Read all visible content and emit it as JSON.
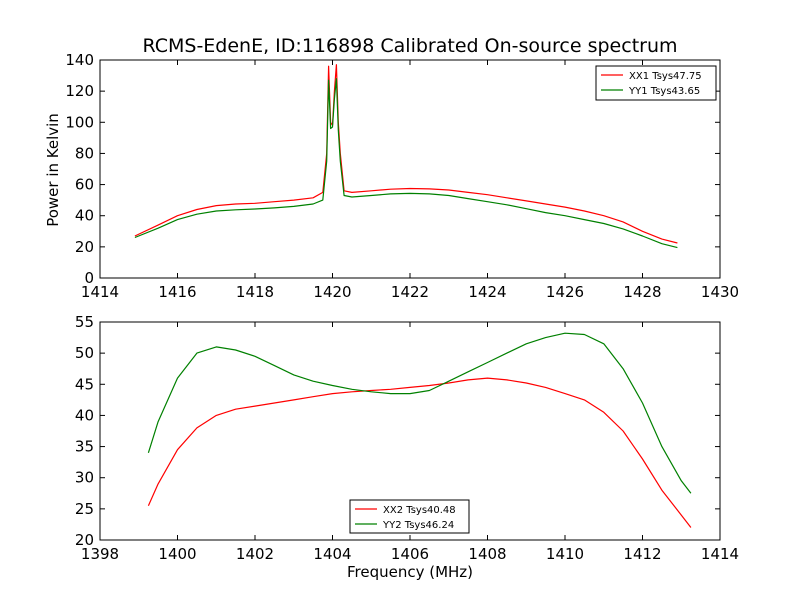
{
  "chart_data": [
    {
      "type": "line",
      "title": "RCMS-EdenE, ID:116898 Calibrated On-source spectrum",
      "xlabel": "",
      "ylabel": "Power in Kelvin",
      "xlim": [
        1414,
        1430
      ],
      "ylim": [
        0,
        140
      ],
      "xticks": [
        1414,
        1416,
        1418,
        1420,
        1422,
        1424,
        1426,
        1428,
        1430
      ],
      "yticks": [
        0,
        20,
        40,
        60,
        80,
        100,
        120,
        140
      ],
      "grid": false,
      "legend": "top-right",
      "series": [
        {
          "name": "XX1 Tsys47.75",
          "color": "#ff0000",
          "x": [
            1414.9,
            1415.5,
            1416,
            1416.5,
            1417,
            1417.5,
            1418,
            1418.5,
            1419,
            1419.5,
            1419.75,
            1419.85,
            1419.9,
            1419.95,
            1420.0,
            1420.05,
            1420.1,
            1420.15,
            1420.2,
            1420.3,
            1420.5,
            1421,
            1421.5,
            1422,
            1422.5,
            1423,
            1423.5,
            1424,
            1424.5,
            1425,
            1425.5,
            1426,
            1426.5,
            1427,
            1427.5,
            1428,
            1428.5,
            1428.9
          ],
          "y": [
            27,
            34,
            40,
            44,
            46.5,
            47.5,
            48,
            49,
            50,
            51.5,
            55,
            80,
            136,
            100,
            98,
            120,
            137,
            100,
            80,
            56,
            55,
            56,
            57,
            57.5,
            57.2,
            56.5,
            55,
            53.5,
            51.5,
            49.5,
            47.5,
            45.5,
            43,
            40,
            36,
            30,
            25,
            22.5
          ]
        },
        {
          "name": "YY1 Tsys43.65",
          "color": "#008000",
          "x": [
            1414.9,
            1415.5,
            1416,
            1416.5,
            1417,
            1417.5,
            1418,
            1418.5,
            1419,
            1419.5,
            1419.75,
            1419.85,
            1419.9,
            1419.95,
            1420.0,
            1420.05,
            1420.1,
            1420.15,
            1420.2,
            1420.3,
            1420.5,
            1421,
            1421.5,
            1422,
            1422.5,
            1423,
            1423.5,
            1424,
            1424.5,
            1425,
            1425.5,
            1426,
            1426.5,
            1427,
            1427.5,
            1428,
            1428.5,
            1428.9
          ],
          "y": [
            26,
            32,
            37.5,
            41,
            43,
            43.8,
            44.3,
            45,
            46,
            47.5,
            50,
            75,
            127,
            96,
            97,
            115,
            128,
            95,
            75,
            53,
            52,
            53,
            54,
            54.3,
            54,
            53,
            51,
            49,
            47,
            44.5,
            42,
            40,
            37.5,
            35,
            31.5,
            27,
            22,
            19.5
          ]
        }
      ]
    },
    {
      "type": "line",
      "title": "",
      "xlabel": "Frequency (MHz)",
      "ylabel": "",
      "xlim": [
        1398,
        1414
      ],
      "ylim": [
        20,
        55
      ],
      "xticks": [
        1398,
        1400,
        1402,
        1404,
        1406,
        1408,
        1410,
        1412,
        1414
      ],
      "yticks": [
        20,
        25,
        30,
        35,
        40,
        45,
        50,
        55
      ],
      "grid": false,
      "legend": "bottom-center",
      "series": [
        {
          "name": "XX2 Tsys40.48",
          "color": "#ff0000",
          "x": [
            1399.25,
            1399.5,
            1400,
            1400.5,
            1401,
            1401.5,
            1402,
            1402.5,
            1403,
            1403.5,
            1404,
            1404.5,
            1405,
            1405.5,
            1406,
            1406.5,
            1407,
            1407.5,
            1408,
            1408.5,
            1409,
            1409.5,
            1410,
            1410.5,
            1411,
            1411.5,
            1412,
            1412.5,
            1413,
            1413.25
          ],
          "y": [
            25.5,
            29,
            34.5,
            38,
            40,
            41,
            41.5,
            42,
            42.5,
            43,
            43.5,
            43.8,
            44,
            44.2,
            44.5,
            44.8,
            45.2,
            45.7,
            46,
            45.7,
            45.2,
            44.5,
            43.5,
            42.5,
            40.5,
            37.5,
            33,
            28,
            24,
            22
          ]
        },
        {
          "name": "YY2 Tsys46.24",
          "color": "#008000",
          "x": [
            1399.25,
            1399.5,
            1400,
            1400.5,
            1401,
            1401.5,
            1402,
            1402.5,
            1403,
            1403.5,
            1404,
            1404.5,
            1405,
            1405.5,
            1406,
            1406.5,
            1407,
            1407.5,
            1408,
            1408.5,
            1409,
            1409.5,
            1410,
            1410.5,
            1411,
            1411.5,
            1412,
            1412.5,
            1413,
            1413.25
          ],
          "y": [
            34,
            39,
            46,
            50,
            51,
            50.5,
            49.5,
            48,
            46.5,
            45.5,
            44.8,
            44.2,
            43.8,
            43.5,
            43.5,
            44,
            45.5,
            47,
            48.5,
            50,
            51.5,
            52.5,
            53.2,
            53,
            51.5,
            47.5,
            42,
            35,
            29.5,
            27.5
          ]
        }
      ]
    }
  ]
}
